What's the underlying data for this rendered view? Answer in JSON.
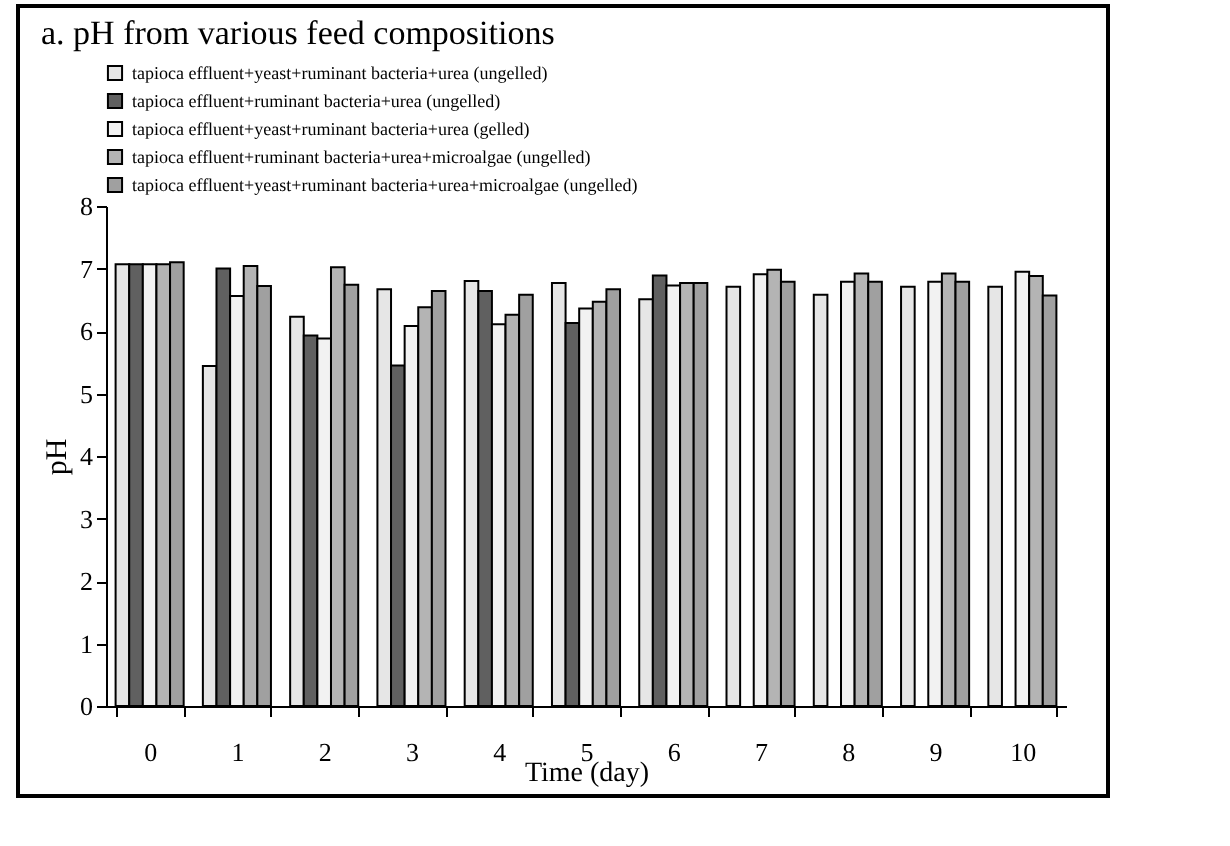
{
  "chart_data": {
    "type": "bar",
    "title": "a.   pH from various feed compositions",
    "xlabel": "Time (day)",
    "ylabel": "pH",
    "categories": [
      "0",
      "1",
      "2",
      "3",
      "4",
      "5",
      "6",
      "7",
      "8",
      "9",
      "10"
    ],
    "series": [
      {
        "name": "tapioca effluent+yeast+ruminant bacteria+urea (ungelled)",
        "color": "#e6e6e6",
        "values": [
          7.07,
          5.44,
          6.23,
          6.67,
          6.8,
          6.77,
          6.51,
          6.71,
          6.58,
          6.71,
          6.71
        ]
      },
      {
        "name": "tapioca effluent+ruminant bacteria+urea (ungelled)",
        "color": "#606060",
        "values": [
          7.07,
          7.0,
          5.93,
          5.45,
          6.64,
          6.13,
          6.89,
          null,
          null,
          null,
          null
        ]
      },
      {
        "name": "tapioca effluent+yeast+ruminant bacteria+urea (gelled)",
        "color": "#f2f2f2",
        "values": [
          7.07,
          6.56,
          5.88,
          6.08,
          6.11,
          6.36,
          6.73,
          6.91,
          6.79,
          6.79,
          6.95
        ]
      },
      {
        "name": "tapioca effluent+ruminant bacteria+urea+microalgae (ungelled)",
        "color": "#b4b4b4",
        "values": [
          7.07,
          7.04,
          7.02,
          6.38,
          6.26,
          6.47,
          6.77,
          6.98,
          6.92,
          6.92,
          6.88
        ]
      },
      {
        "name": "tapioca effluent+yeast+ruminant bacteria+urea+microalgae (ungelled)",
        "color": "#a0a0a0",
        "values": [
          7.1,
          6.72,
          6.74,
          6.64,
          6.58,
          6.67,
          6.77,
          6.79,
          6.79,
          6.79,
          6.57
        ]
      }
    ],
    "ylim": [
      0,
      8
    ],
    "yticks": [
      0,
      1,
      2,
      3,
      4,
      5,
      6,
      7,
      8
    ],
    "grid": false,
    "legend": "top"
  }
}
